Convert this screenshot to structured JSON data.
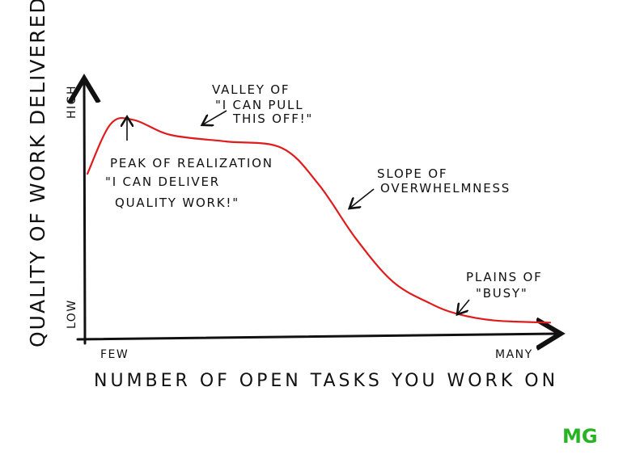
{
  "chart_data": {
    "type": "line",
    "title": "",
    "xlabel": "NUMBER OF OPEN TASKS YOU WORK ON",
    "ylabel": "QUALITY OF WORK DELIVERED",
    "x_tick_labels": [
      "FEW",
      "MANY"
    ],
    "y_tick_labels": [
      "LOW",
      "HIGH"
    ],
    "xlim": [
      0,
      100
    ],
    "ylim": [
      0,
      100
    ],
    "grid": false,
    "line_color": "#e01b1b",
    "series": [
      {
        "x": [
          0,
          5,
          10,
          18,
          30,
          42,
          50,
          58,
          66,
          74,
          80,
          88,
          100
        ],
        "y": [
          70,
          93,
          95,
          88,
          85,
          82,
          65,
          40,
          20,
          10,
          5,
          2,
          1
        ]
      }
    ],
    "annotations": [
      {
        "lines": [
          "PEAK OF REALIZATION",
          "\"I CAN DELIVER",
          "QUALITY WORK!\""
        ]
      },
      {
        "lines": [
          "VALLEY OF",
          "\"I CAN PULL",
          "THIS OFF!\""
        ]
      },
      {
        "lines": [
          "SLOPE OF",
          "OVERWHELMNESS"
        ]
      },
      {
        "lines": [
          "PLAINS OF",
          "\"BUSY\""
        ]
      }
    ]
  },
  "logo": {
    "text": "MG",
    "color": "#27b323"
  }
}
